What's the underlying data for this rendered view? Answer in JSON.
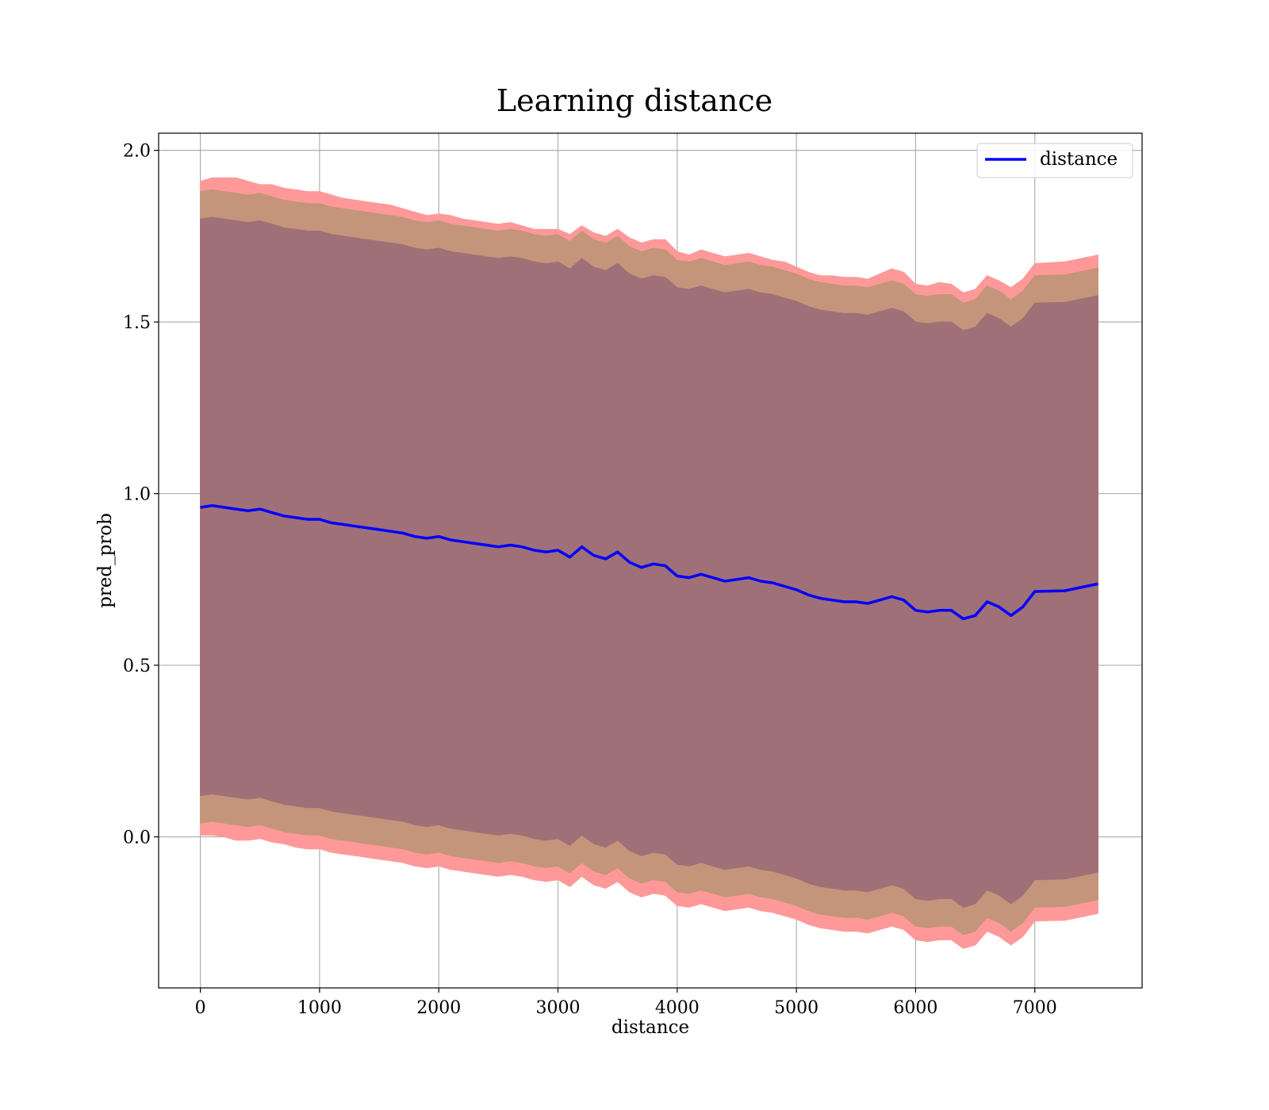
{
  "chart_data": {
    "type": "line",
    "title": "Learning distance",
    "xlabel": "distance",
    "ylabel": "pred_prob",
    "xlim": [
      -350,
      7900
    ],
    "ylim": [
      -0.44,
      2.05
    ],
    "xticks": [
      0,
      1000,
      2000,
      3000,
      4000,
      5000,
      6000,
      7000
    ],
    "yticks": [
      0.0,
      0.5,
      1.0,
      1.5,
      2.0
    ],
    "xtick_labels": [
      "0",
      "1000",
      "2000",
      "3000",
      "4000",
      "5000",
      "6000",
      "7000"
    ],
    "ytick_labels": [
      "0.0",
      "0.5",
      "1.0",
      "1.5",
      "2.0"
    ],
    "grid": true,
    "legend": {
      "placement": "top-right",
      "entries": [
        "distance"
      ]
    },
    "colors": {
      "line": "#0000ff",
      "band_outer": "#ff9999",
      "band_middle": "#c4957a",
      "band_inner": "#a07078"
    },
    "series": [
      {
        "name": "distance",
        "x": [
          0,
          100,
          200,
          300,
          400,
          500,
          600,
          700,
          800,
          900,
          1000,
          1100,
          1200,
          1300,
          1400,
          1500,
          1600,
          1700,
          1800,
          1900,
          2000,
          2100,
          2200,
          2300,
          2400,
          2500,
          2600,
          2700,
          2800,
          2900,
          3000,
          3100,
          3200,
          3300,
          3400,
          3500,
          3600,
          3700,
          3800,
          3900,
          4000,
          4100,
          4200,
          4300,
          4400,
          4500,
          4600,
          4700,
          4800,
          4900,
          5000,
          5100,
          5200,
          5300,
          5400,
          5500,
          5600,
          5700,
          5800,
          5900,
          6000,
          6100,
          6200,
          6300,
          6400,
          6500,
          6600,
          6700,
          6800,
          6900,
          7000,
          7250,
          7530
        ],
        "y": [
          0.96,
          0.965,
          0.96,
          0.955,
          0.95,
          0.955,
          0.945,
          0.935,
          0.93,
          0.925,
          0.925,
          0.915,
          0.91,
          0.905,
          0.9,
          0.895,
          0.89,
          0.885,
          0.875,
          0.87,
          0.875,
          0.865,
          0.86,
          0.855,
          0.85,
          0.845,
          0.85,
          0.845,
          0.835,
          0.83,
          0.835,
          0.815,
          0.845,
          0.82,
          0.81,
          0.83,
          0.8,
          0.785,
          0.795,
          0.79,
          0.76,
          0.755,
          0.765,
          0.755,
          0.745,
          0.75,
          0.755,
          0.745,
          0.74,
          0.73,
          0.72,
          0.705,
          0.695,
          0.69,
          0.685,
          0.685,
          0.68,
          0.69,
          0.7,
          0.69,
          0.66,
          0.655,
          0.66,
          0.66,
          0.635,
          0.645,
          0.685,
          0.67,
          0.645,
          0.67,
          0.715,
          0.717,
          0.737
        ]
      }
    ],
    "bands": [
      {
        "level": "outer",
        "upper": [
          1.91,
          1.92,
          1.92,
          1.92,
          1.91,
          1.9,
          1.9,
          1.89,
          1.885,
          1.88,
          1.88,
          1.87,
          1.86,
          1.855,
          1.85,
          1.845,
          1.84,
          1.83,
          1.82,
          1.81,
          1.815,
          1.81,
          1.8,
          1.795,
          1.79,
          1.785,
          1.79,
          1.78,
          1.77,
          1.77,
          1.77,
          1.755,
          1.78,
          1.76,
          1.75,
          1.77,
          1.745,
          1.73,
          1.74,
          1.74,
          1.705,
          1.695,
          1.71,
          1.7,
          1.69,
          1.695,
          1.7,
          1.69,
          1.68,
          1.675,
          1.66,
          1.645,
          1.635,
          1.635,
          1.63,
          1.63,
          1.625,
          1.64,
          1.655,
          1.645,
          1.61,
          1.605,
          1.615,
          1.61,
          1.585,
          1.595,
          1.635,
          1.62,
          1.6,
          1.625,
          1.67,
          1.675,
          1.695
        ],
        "lower": [
          0.005,
          0.005,
          0.0,
          -0.01,
          -0.01,
          -0.005,
          -0.015,
          -0.02,
          -0.03,
          -0.035,
          -0.035,
          -0.045,
          -0.05,
          -0.055,
          -0.06,
          -0.065,
          -0.07,
          -0.075,
          -0.085,
          -0.09,
          -0.085,
          -0.095,
          -0.1,
          -0.105,
          -0.11,
          -0.115,
          -0.11,
          -0.115,
          -0.125,
          -0.13,
          -0.125,
          -0.145,
          -0.115,
          -0.14,
          -0.15,
          -0.13,
          -0.16,
          -0.175,
          -0.165,
          -0.17,
          -0.2,
          -0.205,
          -0.195,
          -0.205,
          -0.215,
          -0.21,
          -0.205,
          -0.215,
          -0.22,
          -0.23,
          -0.24,
          -0.255,
          -0.265,
          -0.27,
          -0.275,
          -0.275,
          -0.28,
          -0.27,
          -0.26,
          -0.27,
          -0.3,
          -0.305,
          -0.3,
          -0.3,
          -0.325,
          -0.315,
          -0.275,
          -0.29,
          -0.315,
          -0.29,
          -0.245,
          -0.243,
          -0.223
        ]
      },
      {
        "level": "middle",
        "upper": [
          1.88,
          1.885,
          1.88,
          1.875,
          1.87,
          1.875,
          1.865,
          1.855,
          1.85,
          1.845,
          1.845,
          1.835,
          1.83,
          1.825,
          1.82,
          1.815,
          1.81,
          1.805,
          1.795,
          1.79,
          1.795,
          1.785,
          1.78,
          1.775,
          1.77,
          1.765,
          1.77,
          1.765,
          1.755,
          1.75,
          1.755,
          1.735,
          1.765,
          1.74,
          1.73,
          1.75,
          1.72,
          1.705,
          1.715,
          1.71,
          1.68,
          1.675,
          1.685,
          1.675,
          1.665,
          1.67,
          1.675,
          1.665,
          1.66,
          1.65,
          1.64,
          1.625,
          1.615,
          1.61,
          1.605,
          1.605,
          1.6,
          1.61,
          1.62,
          1.61,
          1.58,
          1.575,
          1.58,
          1.58,
          1.555,
          1.565,
          1.605,
          1.59,
          1.565,
          1.59,
          1.635,
          1.637,
          1.657
        ],
        "lower": [
          0.04,
          0.045,
          0.04,
          0.035,
          0.03,
          0.035,
          0.025,
          0.015,
          0.01,
          0.005,
          0.005,
          -0.005,
          -0.01,
          -0.015,
          -0.02,
          -0.025,
          -0.03,
          -0.035,
          -0.045,
          -0.05,
          -0.045,
          -0.055,
          -0.06,
          -0.065,
          -0.07,
          -0.075,
          -0.07,
          -0.075,
          -0.085,
          -0.09,
          -0.085,
          -0.105,
          -0.075,
          -0.1,
          -0.11,
          -0.09,
          -0.12,
          -0.135,
          -0.125,
          -0.13,
          -0.16,
          -0.165,
          -0.155,
          -0.165,
          -0.175,
          -0.17,
          -0.165,
          -0.175,
          -0.18,
          -0.19,
          -0.2,
          -0.215,
          -0.225,
          -0.23,
          -0.235,
          -0.235,
          -0.24,
          -0.23,
          -0.22,
          -0.23,
          -0.26,
          -0.265,
          -0.26,
          -0.26,
          -0.285,
          -0.275,
          -0.235,
          -0.25,
          -0.275,
          -0.25,
          -0.205,
          -0.203,
          -0.183
        ]
      },
      {
        "level": "inner",
        "upper": [
          1.8,
          1.805,
          1.8,
          1.795,
          1.79,
          1.795,
          1.785,
          1.775,
          1.77,
          1.765,
          1.765,
          1.755,
          1.75,
          1.745,
          1.74,
          1.735,
          1.73,
          1.725,
          1.715,
          1.71,
          1.715,
          1.705,
          1.7,
          1.695,
          1.69,
          1.685,
          1.69,
          1.685,
          1.675,
          1.67,
          1.675,
          1.655,
          1.685,
          1.66,
          1.65,
          1.67,
          1.64,
          1.625,
          1.635,
          1.63,
          1.6,
          1.595,
          1.605,
          1.595,
          1.585,
          1.59,
          1.595,
          1.585,
          1.58,
          1.57,
          1.56,
          1.545,
          1.535,
          1.53,
          1.525,
          1.525,
          1.52,
          1.53,
          1.54,
          1.53,
          1.5,
          1.495,
          1.5,
          1.5,
          1.475,
          1.485,
          1.525,
          1.51,
          1.485,
          1.51,
          1.555,
          1.557,
          1.577
        ],
        "lower": [
          0.12,
          0.125,
          0.12,
          0.115,
          0.11,
          0.115,
          0.105,
          0.095,
          0.09,
          0.085,
          0.085,
          0.075,
          0.07,
          0.065,
          0.06,
          0.055,
          0.05,
          0.045,
          0.035,
          0.03,
          0.035,
          0.025,
          0.02,
          0.015,
          0.01,
          0.005,
          0.01,
          0.005,
          -0.005,
          -0.01,
          -0.005,
          -0.025,
          0.005,
          -0.02,
          -0.03,
          -0.01,
          -0.04,
          -0.055,
          -0.045,
          -0.05,
          -0.08,
          -0.085,
          -0.075,
          -0.085,
          -0.095,
          -0.09,
          -0.085,
          -0.095,
          -0.1,
          -0.11,
          -0.12,
          -0.135,
          -0.145,
          -0.15,
          -0.155,
          -0.155,
          -0.16,
          -0.15,
          -0.14,
          -0.15,
          -0.18,
          -0.185,
          -0.18,
          -0.18,
          -0.205,
          -0.195,
          -0.155,
          -0.17,
          -0.195,
          -0.17,
          -0.125,
          -0.123,
          -0.103
        ]
      }
    ]
  }
}
